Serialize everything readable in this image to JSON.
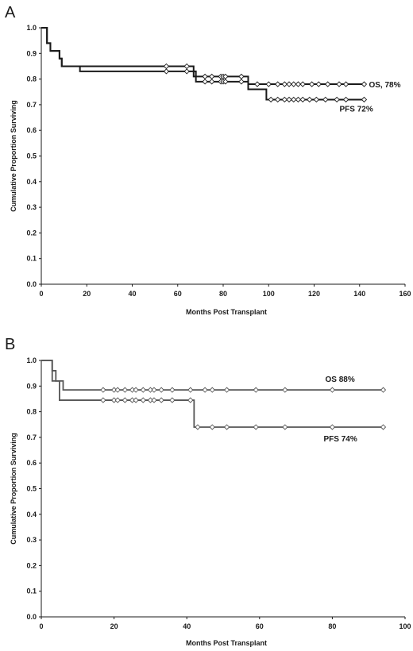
{
  "chart_data": [
    {
      "type": "line",
      "panel_label": "A",
      "xlabel": "Months Post Transplant",
      "ylabel": "Cumulative Proportion Surviving",
      "xlim": [
        0,
        160
      ],
      "ylim": [
        0.0,
        1.0
      ],
      "xticks": [
        "0",
        "20",
        "40",
        "60",
        "80",
        "100",
        "120",
        "140",
        "160"
      ],
      "yticks": [
        "0.0",
        "0.1",
        "0.2",
        "0.3",
        "0.4",
        "0.5",
        "0.6",
        "0.7",
        "0.8",
        "0.9",
        "1.0"
      ],
      "grid": false,
      "series": [
        {
          "name": "OS, 78%",
          "color": "#1a1a1a",
          "steps": [
            [
              0,
              1.0
            ],
            [
              2.5,
              0.94
            ],
            [
              4,
              0.91
            ],
            [
              8,
              0.88
            ],
            [
              9,
              0.85
            ],
            [
              67,
              0.85
            ],
            [
              67,
              0.81
            ],
            [
              91,
              0.81
            ],
            [
              91,
              0.78
            ],
            [
              142,
              0.78
            ]
          ],
          "censored": [
            [
              55,
              0.85
            ],
            [
              64,
              0.85
            ],
            [
              72,
              0.81
            ],
            [
              75,
              0.81
            ],
            [
              79,
              0.81
            ],
            [
              80,
              0.81
            ],
            [
              81,
              0.81
            ],
            [
              88,
              0.81
            ],
            [
              95,
              0.78
            ],
            [
              100,
              0.78
            ],
            [
              104,
              0.78
            ],
            [
              107,
              0.78
            ],
            [
              109,
              0.78
            ],
            [
              111,
              0.78
            ],
            [
              113,
              0.78
            ],
            [
              115,
              0.78
            ],
            [
              119,
              0.78
            ],
            [
              122,
              0.78
            ],
            [
              126,
              0.78
            ],
            [
              131,
              0.78
            ],
            [
              134,
              0.78
            ],
            [
              142,
              0.78
            ]
          ]
        },
        {
          "name": "PFS 72%",
          "color": "#1a1a1a",
          "steps": [
            [
              0,
              1.0
            ],
            [
              2.5,
              0.94
            ],
            [
              4,
              0.91
            ],
            [
              8,
              0.88
            ],
            [
              9,
              0.85
            ],
            [
              17,
              0.85
            ],
            [
              17,
              0.83
            ],
            [
              68,
              0.83
            ],
            [
              68,
              0.79
            ],
            [
              91,
              0.79
            ],
            [
              91,
              0.76
            ],
            [
              99,
              0.76
            ],
            [
              99,
              0.72
            ],
            [
              142,
              0.72
            ]
          ],
          "censored": [
            [
              55,
              0.83
            ],
            [
              64,
              0.83
            ],
            [
              72,
              0.79
            ],
            [
              75,
              0.79
            ],
            [
              79,
              0.79
            ],
            [
              80,
              0.79
            ],
            [
              81,
              0.79
            ],
            [
              88,
              0.79
            ],
            [
              101,
              0.72
            ],
            [
              104,
              0.72
            ],
            [
              107,
              0.72
            ],
            [
              109,
              0.72
            ],
            [
              111,
              0.72
            ],
            [
              113,
              0.72
            ],
            [
              115,
              0.72
            ],
            [
              118,
              0.72
            ],
            [
              121,
              0.72
            ],
            [
              125,
              0.72
            ],
            [
              130,
              0.72
            ],
            [
              134,
              0.72
            ],
            [
              142,
              0.72
            ]
          ]
        }
      ]
    },
    {
      "type": "line",
      "panel_label": "B",
      "xlabel": "Months Post Transplant",
      "ylabel": "Cumulative Proportion Surviving",
      "xlim": [
        0,
        100
      ],
      "ylim": [
        0.0,
        1.0
      ],
      "xticks": [
        "0",
        "20",
        "40",
        "60",
        "80",
        "100"
      ],
      "yticks": [
        "0.0",
        "0.1",
        "0.2",
        "0.3",
        "0.4",
        "0.5",
        "0.6",
        "0.7",
        "0.8",
        "0.9",
        "1.0"
      ],
      "grid": false,
      "series": [
        {
          "name": "OS 88%",
          "color": "#555555",
          "steps": [
            [
              0,
              1.0
            ],
            [
              3,
              1.0
            ],
            [
              3,
              0.96
            ],
            [
              4,
              0.96
            ],
            [
              4,
              0.92
            ],
            [
              6,
              0.92
            ],
            [
              6,
              0.885
            ],
            [
              94,
              0.885
            ]
          ],
          "censored": [
            [
              17,
              0.885
            ],
            [
              20,
              0.885
            ],
            [
              21,
              0.885
            ],
            [
              23,
              0.885
            ],
            [
              25,
              0.885
            ],
            [
              26,
              0.885
            ],
            [
              28,
              0.885
            ],
            [
              30,
              0.885
            ],
            [
              31,
              0.885
            ],
            [
              33,
              0.885
            ],
            [
              36,
              0.885
            ],
            [
              41,
              0.885
            ],
            [
              45,
              0.885
            ],
            [
              47,
              0.885
            ],
            [
              51,
              0.885
            ],
            [
              59,
              0.885
            ],
            [
              67,
              0.885
            ],
            [
              80,
              0.885
            ],
            [
              94,
              0.885
            ]
          ]
        },
        {
          "name": "PFS 74%",
          "color": "#555555",
          "steps": [
            [
              0,
              1.0
            ],
            [
              3,
              1.0
            ],
            [
              3,
              0.92
            ],
            [
              5,
              0.92
            ],
            [
              5,
              0.845
            ],
            [
              42,
              0.845
            ],
            [
              42,
              0.74
            ],
            [
              94,
              0.74
            ]
          ],
          "censored": [
            [
              17,
              0.845
            ],
            [
              20,
              0.845
            ],
            [
              21,
              0.845
            ],
            [
              23,
              0.845
            ],
            [
              25,
              0.845
            ],
            [
              26,
              0.845
            ],
            [
              28,
              0.845
            ],
            [
              30,
              0.845
            ],
            [
              31,
              0.845
            ],
            [
              33,
              0.845
            ],
            [
              36,
              0.845
            ],
            [
              41,
              0.845
            ],
            [
              43,
              0.74
            ],
            [
              47,
              0.74
            ],
            [
              51,
              0.74
            ],
            [
              59,
              0.74
            ],
            [
              67,
              0.74
            ],
            [
              80,
              0.74
            ],
            [
              94,
              0.74
            ]
          ]
        }
      ]
    }
  ]
}
